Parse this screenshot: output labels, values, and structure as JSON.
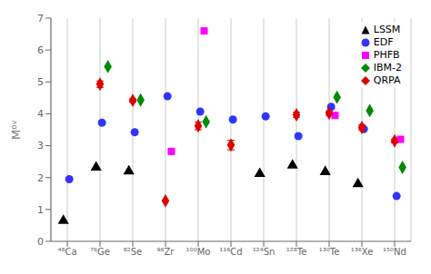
{
  "chart_data": {
    "type": "scatter",
    "categories": [
      "⁴⁸Ca",
      "⁷⁶Ge",
      "⁸²Se",
      "⁹⁶Zr",
      "¹⁰⁰Mo",
      "¹¹⁶Cd",
      "¹²⁴Sn",
      "¹²⁸Te",
      "¹³⁰Te",
      "¹³⁶Xe",
      "¹⁵⁰Nd"
    ],
    "ylabel": "M⁰ᵛ",
    "ylim": [
      0,
      7
    ],
    "yticks": [
      0,
      1,
      2,
      3,
      4,
      5,
      6,
      7
    ],
    "grid": true,
    "legend": "upper right",
    "series": [
      {
        "name": "LSSM",
        "color": "black",
        "marker": "triangle",
        "values": [
          0.65,
          2.32,
          2.2,
          null,
          null,
          null,
          2.12,
          2.38,
          2.18,
          1.8,
          null
        ]
      },
      {
        "name": "EDF",
        "color": "#3333ff",
        "marker": "circle",
        "values": [
          1.95,
          3.72,
          3.42,
          4.55,
          4.07,
          3.82,
          3.92,
          3.3,
          4.22,
          3.52,
          1.42
        ]
      },
      {
        "name": "PHFB",
        "color": "#ff00ff",
        "marker": "square",
        "values": [
          null,
          null,
          null,
          2.82,
          6.6,
          null,
          null,
          null,
          3.95,
          null,
          3.2
        ]
      },
      {
        "name": "IBM-2",
        "color": "#008800",
        "marker": "diamond",
        "values": [
          null,
          5.48,
          4.43,
          null,
          3.75,
          null,
          null,
          null,
          4.52,
          4.1,
          2.32
        ]
      },
      {
        "name": "QRPA",
        "color": "#dd0000",
        "marker": "diamond",
        "values": [
          null,
          4.93,
          4.42,
          1.27,
          3.62,
          3.02,
          null,
          3.97,
          4.02,
          3.57,
          3.15
        ],
        "errors": [
          null,
          0.1,
          0.05,
          0.0,
          0.12,
          0.15,
          null,
          0.08,
          0.07,
          0.08,
          0.06
        ]
      }
    ]
  }
}
